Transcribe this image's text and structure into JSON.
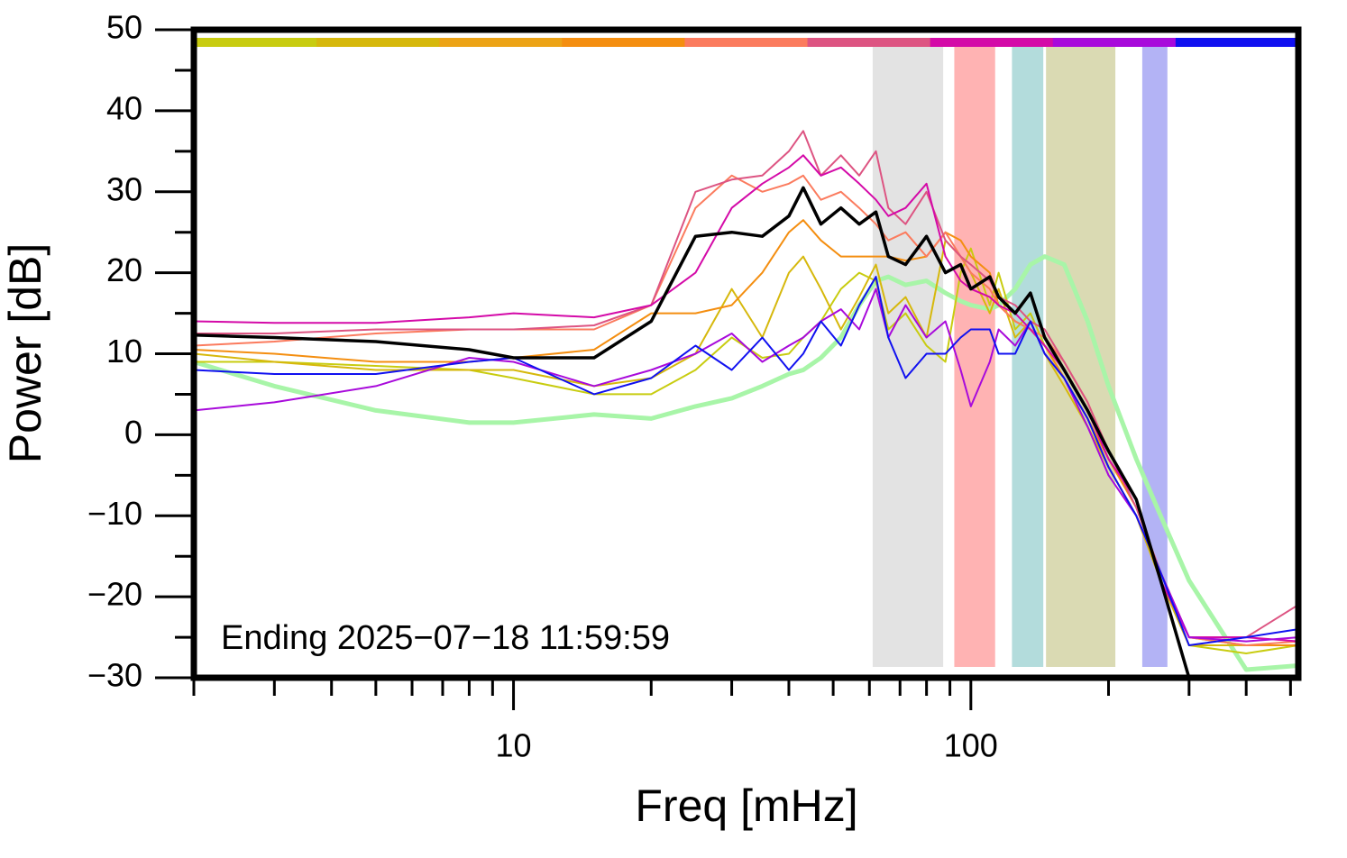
{
  "chart_data": {
    "type": "line",
    "x_label": "Freq [mHz]",
    "y_label": "Power [dB]",
    "annotation": "Ending 2025−07−18 11:59:59",
    "xscale": "log",
    "xlim": [
      2,
      520
    ],
    "ylim": [
      -30,
      50
    ],
    "xticks": [
      10,
      100
    ],
    "xticks_minor": [
      2,
      3,
      4,
      5,
      6,
      7,
      8,
      9,
      20,
      30,
      40,
      50,
      60,
      70,
      80,
      90,
      200,
      300,
      400,
      500
    ],
    "yticks": [
      {
        "value": -30,
        "label": "−30"
      },
      {
        "value": -20,
        "label": "−20"
      },
      {
        "value": -10,
        "label": "−10"
      },
      0,
      10,
      20,
      30,
      40,
      50
    ],
    "yticks_minor": [
      -25,
      -15,
      -5,
      5,
      15,
      25,
      35,
      45
    ],
    "color_bar": [
      "#c8cc10",
      "#d6b80c",
      "#eca316",
      "#f48e10",
      "#fb7b5e",
      "#dd5482",
      "#d40aa8",
      "#a80adb",
      "#1010f0"
    ],
    "bands": [
      {
        "x": [
          61,
          87
        ],
        "color": "#e3e3e3"
      },
      {
        "x": [
          92,
          113
        ],
        "color": "#ffb3b3"
      },
      {
        "x": [
          123,
          144
        ],
        "color": "#b3dcdc"
      },
      {
        "x": [
          146,
          207
        ],
        "color": "#dadab3"
      },
      {
        "x": [
          237,
          269
        ],
        "color": "#b3b3f5"
      }
    ],
    "x": [
      2,
      3,
      5,
      8,
      10,
      15,
      20,
      25,
      30,
      35,
      40,
      43,
      47,
      52,
      57,
      62,
      66,
      72,
      80,
      88,
      95,
      100,
      110,
      115,
      125,
      135,
      145,
      160,
      180,
      200,
      230,
      260,
      300,
      400,
      520
    ],
    "series": [
      {
        "color": "#a8f5a8",
        "width": 5,
        "values": [
          9,
          6,
          3,
          1.5,
          1.5,
          2.5,
          2,
          3.5,
          4.5,
          6,
          7.5,
          8,
          9.5,
          12,
          16,
          19,
          19.5,
          18.5,
          19,
          17.5,
          16.5,
          16,
          15.5,
          16,
          18,
          21,
          22,
          21,
          14,
          6,
          -3,
          -10,
          -18,
          -29,
          -28.5
        ]
      },
      {
        "color": "#c8cc10",
        "width": 2,
        "values": [
          9,
          9,
          8.5,
          8,
          7,
          5,
          5,
          8,
          12,
          9.5,
          10,
          12,
          14,
          18,
          20,
          19,
          13,
          15,
          11,
          9,
          20,
          23,
          16,
          20,
          13,
          15,
          11,
          7,
          2,
          -4,
          -10,
          -18,
          -26,
          -27,
          -26
        ]
      },
      {
        "color": "#d6b80c",
        "width": 2,
        "values": [
          10,
          9,
          8,
          8,
          8,
          6,
          7,
          10,
          18,
          12,
          20,
          22,
          18,
          13,
          17,
          21,
          15,
          17,
          12,
          24,
          22,
          20,
          15,
          18,
          12,
          14,
          10,
          6,
          1,
          -4,
          -10,
          -18,
          -26,
          -26,
          -26
        ]
      },
      {
        "color": "#f48e10",
        "width": 2,
        "values": [
          10.5,
          10,
          9,
          9,
          9.5,
          10.5,
          15,
          15,
          16,
          20,
          25,
          26.5,
          24,
          22,
          22,
          22,
          22,
          21.5,
          22,
          25,
          24,
          22,
          20,
          16,
          14,
          13,
          11,
          7,
          2,
          -3,
          -9,
          -17,
          -25,
          -26,
          -26
        ]
      },
      {
        "color": "#fb7b5e",
        "width": 2,
        "values": [
          11,
          11.5,
          12.5,
          13,
          13,
          13,
          16,
          28,
          32,
          30,
          31,
          32,
          29,
          30,
          28,
          26,
          24,
          25,
          22,
          25,
          22,
          20,
          18,
          16,
          14,
          13,
          12,
          9,
          4,
          -2,
          -8,
          -18,
          -25,
          -26,
          -25.5
        ]
      },
      {
        "color": "#dd5482",
        "width": 2,
        "values": [
          12.5,
          12.5,
          13,
          13,
          13,
          13.5,
          16,
          30,
          31.5,
          32,
          35,
          37.5,
          32,
          34.5,
          32,
          35,
          28,
          26,
          30,
          24,
          22,
          21,
          19,
          17,
          16,
          14,
          13,
          9,
          4,
          -2,
          -9,
          -17,
          -25,
          -25,
          -21
        ]
      },
      {
        "color": "#d40aa8",
        "width": 2,
        "values": [
          14,
          13.8,
          13.8,
          14.5,
          15,
          14.5,
          16,
          20,
          28,
          31,
          33,
          34.5,
          32,
          33,
          31,
          29,
          27,
          28,
          31,
          22,
          19,
          18,
          17,
          16,
          15,
          13,
          11,
          8,
          3,
          -3,
          -8,
          -18,
          -25,
          -25,
          -25.5
        ]
      },
      {
        "color": "#a80adb",
        "width": 2,
        "values": [
          3,
          4,
          6,
          9.5,
          9,
          6,
          8,
          10,
          12.5,
          9,
          11,
          12,
          14,
          15.5,
          13,
          18,
          12,
          16,
          12,
          14,
          8,
          3.5,
          9,
          13,
          11,
          14,
          10,
          7,
          1,
          -5,
          -10,
          -17,
          -25,
          -25.5,
          -25
        ]
      },
      {
        "color": "#1010f0",
        "width": 2,
        "values": [
          8,
          7.5,
          7.5,
          9,
          9.5,
          5,
          7,
          11,
          8,
          12,
          8,
          10,
          14,
          11,
          16,
          19.5,
          12,
          7,
          10,
          10,
          12,
          13,
          13,
          10,
          10,
          14,
          10,
          7,
          2,
          -4,
          -10,
          -17,
          -26,
          -25,
          -24
        ]
      },
      {
        "color": "#000000",
        "width": 3.5,
        "values": [
          12.3,
          12,
          11.5,
          10.5,
          9.5,
          9.5,
          14,
          24.5,
          25,
          24.5,
          27,
          30.5,
          26,
          28,
          26,
          27.5,
          22,
          21,
          24.5,
          20,
          21,
          18,
          19.5,
          17,
          15,
          17.5,
          12,
          8,
          3,
          -2,
          -8,
          -18,
          -30,
          null,
          null
        ]
      }
    ]
  }
}
